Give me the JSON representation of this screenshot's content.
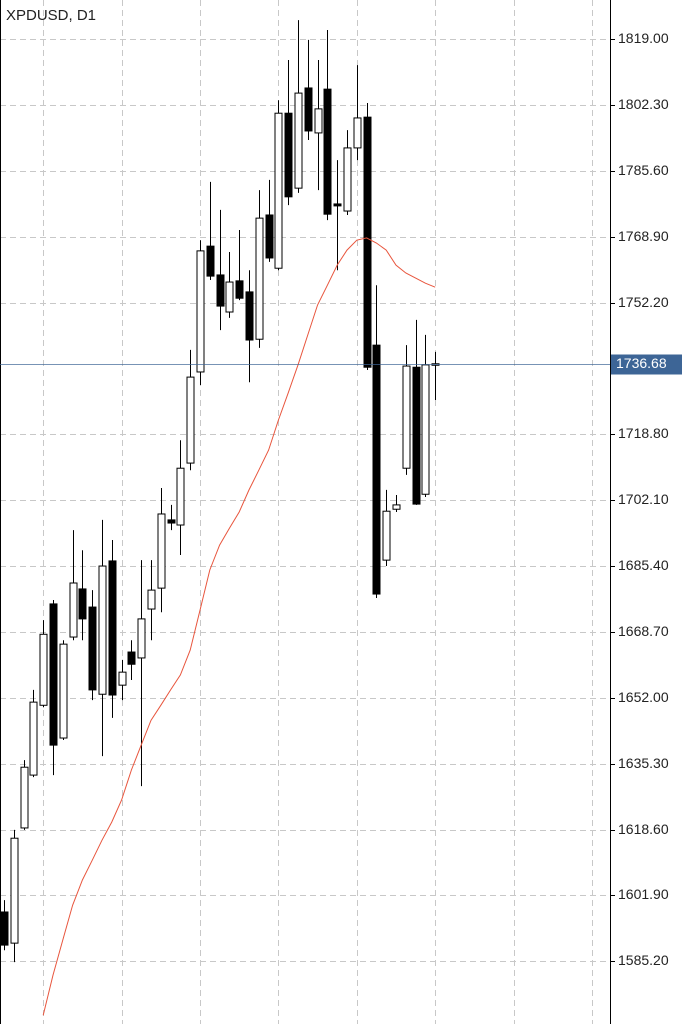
{
  "chart_data": {
    "type": "candlestick",
    "title": "XPDUSD, D1",
    "open": [
      1597.7,
      1589.8,
      1619.0,
      1632.4,
      1650.1,
      1675.8,
      1641.8,
      1667.4,
      1679.6,
      1675.0,
      1652.9,
      1686.7,
      1655.2,
      1663.6,
      1662.1,
      1674.5,
      1679.8,
      1697.1,
      1695.8,
      1711.5,
      1734.6,
      1766.5,
      1759.2,
      1749.8,
      1757.7,
      1754.9,
      1742.9,
      1774.4,
      1760.9,
      1800.2,
      1781.2,
      1806.6,
      1795.2,
      1806.3,
      1777.2,
      1775.4,
      1791.4,
      1799.2,
      1741.4,
      1686.9,
      1699.8,
      1710.2,
      1735.8,
      1703.6,
      1736.4
    ],
    "high": [
      1600.7,
      1618.5,
      1636.2,
      1654.0,
      1671.7,
      1676.8,
      1666.6,
      1694.5,
      1689.4,
      1679.3,
      1697.1,
      1692.0,
      1661.6,
      1666.6,
      1686.9,
      1686.9,
      1705.2,
      1700.9,
      1717.3,
      1740.2,
      1768.0,
      1782.8,
      1775.7,
      1765.0,
      1770.6,
      1760.4,
      1780.7,
      1783.3,
      1803.5,
      1813.7,
      1823.8,
      1818.8,
      1813.7,
      1821.3,
      1788.3,
      1795.9,
      1812.4,
      1802.8,
      1756.6,
      1704.7,
      1703.4,
      1741.4,
      1747.8,
      1744.0,
      1739.7
    ],
    "low": [
      1588.0,
      1585.0,
      1618.5,
      1631.9,
      1649.6,
      1632.4,
      1641.3,
      1666.6,
      1666.6,
      1651.4,
      1637.2,
      1646.9,
      1651.4,
      1656.5,
      1629.6,
      1666.6,
      1673.7,
      1694.5,
      1688.2,
      1709.7,
      1731.3,
      1757.9,
      1745.2,
      1748.3,
      1752.8,
      1732.0,
      1740.7,
      1762.5,
      1760.4,
      1776.9,
      1780.0,
      1793.4,
      1780.7,
      1773.1,
      1760.4,
      1774.4,
      1788.3,
      1735.1,
      1677.3,
      1685.4,
      1699.1,
      1708.5,
      1700.9,
      1702.9,
      1727.5
    ],
    "close": [
      1589.3,
      1616.4,
      1634.4,
      1650.9,
      1668.1,
      1640.0,
      1665.6,
      1681.1,
      1672.0,
      1654.0,
      1685.4,
      1652.7,
      1658.5,
      1660.5,
      1672.0,
      1679.3,
      1698.6,
      1696.3,
      1710.2,
      1733.3,
      1765.3,
      1758.9,
      1751.3,
      1757.4,
      1753.3,
      1742.7,
      1773.6,
      1763.5,
      1800.2,
      1779.0,
      1805.3,
      1795.7,
      1801.3,
      1774.6,
      1776.7,
      1791.4,
      1799.0,
      1735.8,
      1678.3,
      1699.3,
      1700.9,
      1736.1,
      1701.1,
      1736.4,
      1736.68
    ],
    "up_color": "#ffffff",
    "down_color": "#000000",
    "moving_average": {
      "color": "#e8553d",
      "values": [
        null,
        null,
        null,
        null,
        1571.5,
        1581.7,
        1590.6,
        1599.4,
        1605.8,
        1610.8,
        1615.9,
        1620.5,
        1626.1,
        1633.7,
        1640.0,
        1646.3,
        1650.1,
        1654.0,
        1657.8,
        1664.1,
        1674.2,
        1684.4,
        1690.7,
        1695.0,
        1699.1,
        1704.7,
        1709.7,
        1714.8,
        1722.4,
        1729.3,
        1736.4,
        1744.0,
        1751.6,
        1756.6,
        1761.7,
        1765.5,
        1768.0,
        1768.6,
        1767.3,
        1765.5,
        1761.7,
        1759.7,
        1758.4,
        1757.1,
        1756.1
      ]
    },
    "current_price": 1736.68,
    "current_price_color": "#3d6596",
    "ylim": [
      1569.3,
      1828.9
    ],
    "yticks": [
      {
        "value": 1819.0,
        "label": "1819.00"
      },
      {
        "value": 1802.3,
        "label": "1802.30"
      },
      {
        "value": 1785.6,
        "label": "1785.60"
      },
      {
        "value": 1768.9,
        "label": "1768.90"
      },
      {
        "value": 1752.2,
        "label": "1752.20"
      },
      {
        "value": 1718.8,
        "label": "1718.80"
      },
      {
        "value": 1702.1,
        "label": "1702.10"
      },
      {
        "value": 1685.4,
        "label": "1685.40"
      },
      {
        "value": 1668.7,
        "label": "1668.70"
      },
      {
        "value": 1652.0,
        "label": "1652.00"
      },
      {
        "value": 1635.3,
        "label": "1635.30"
      },
      {
        "value": 1618.6,
        "label": "1618.60"
      },
      {
        "value": 1601.9,
        "label": "1601.90"
      },
      {
        "value": 1585.2,
        "label": "1585.20"
      }
    ],
    "grid": true
  }
}
